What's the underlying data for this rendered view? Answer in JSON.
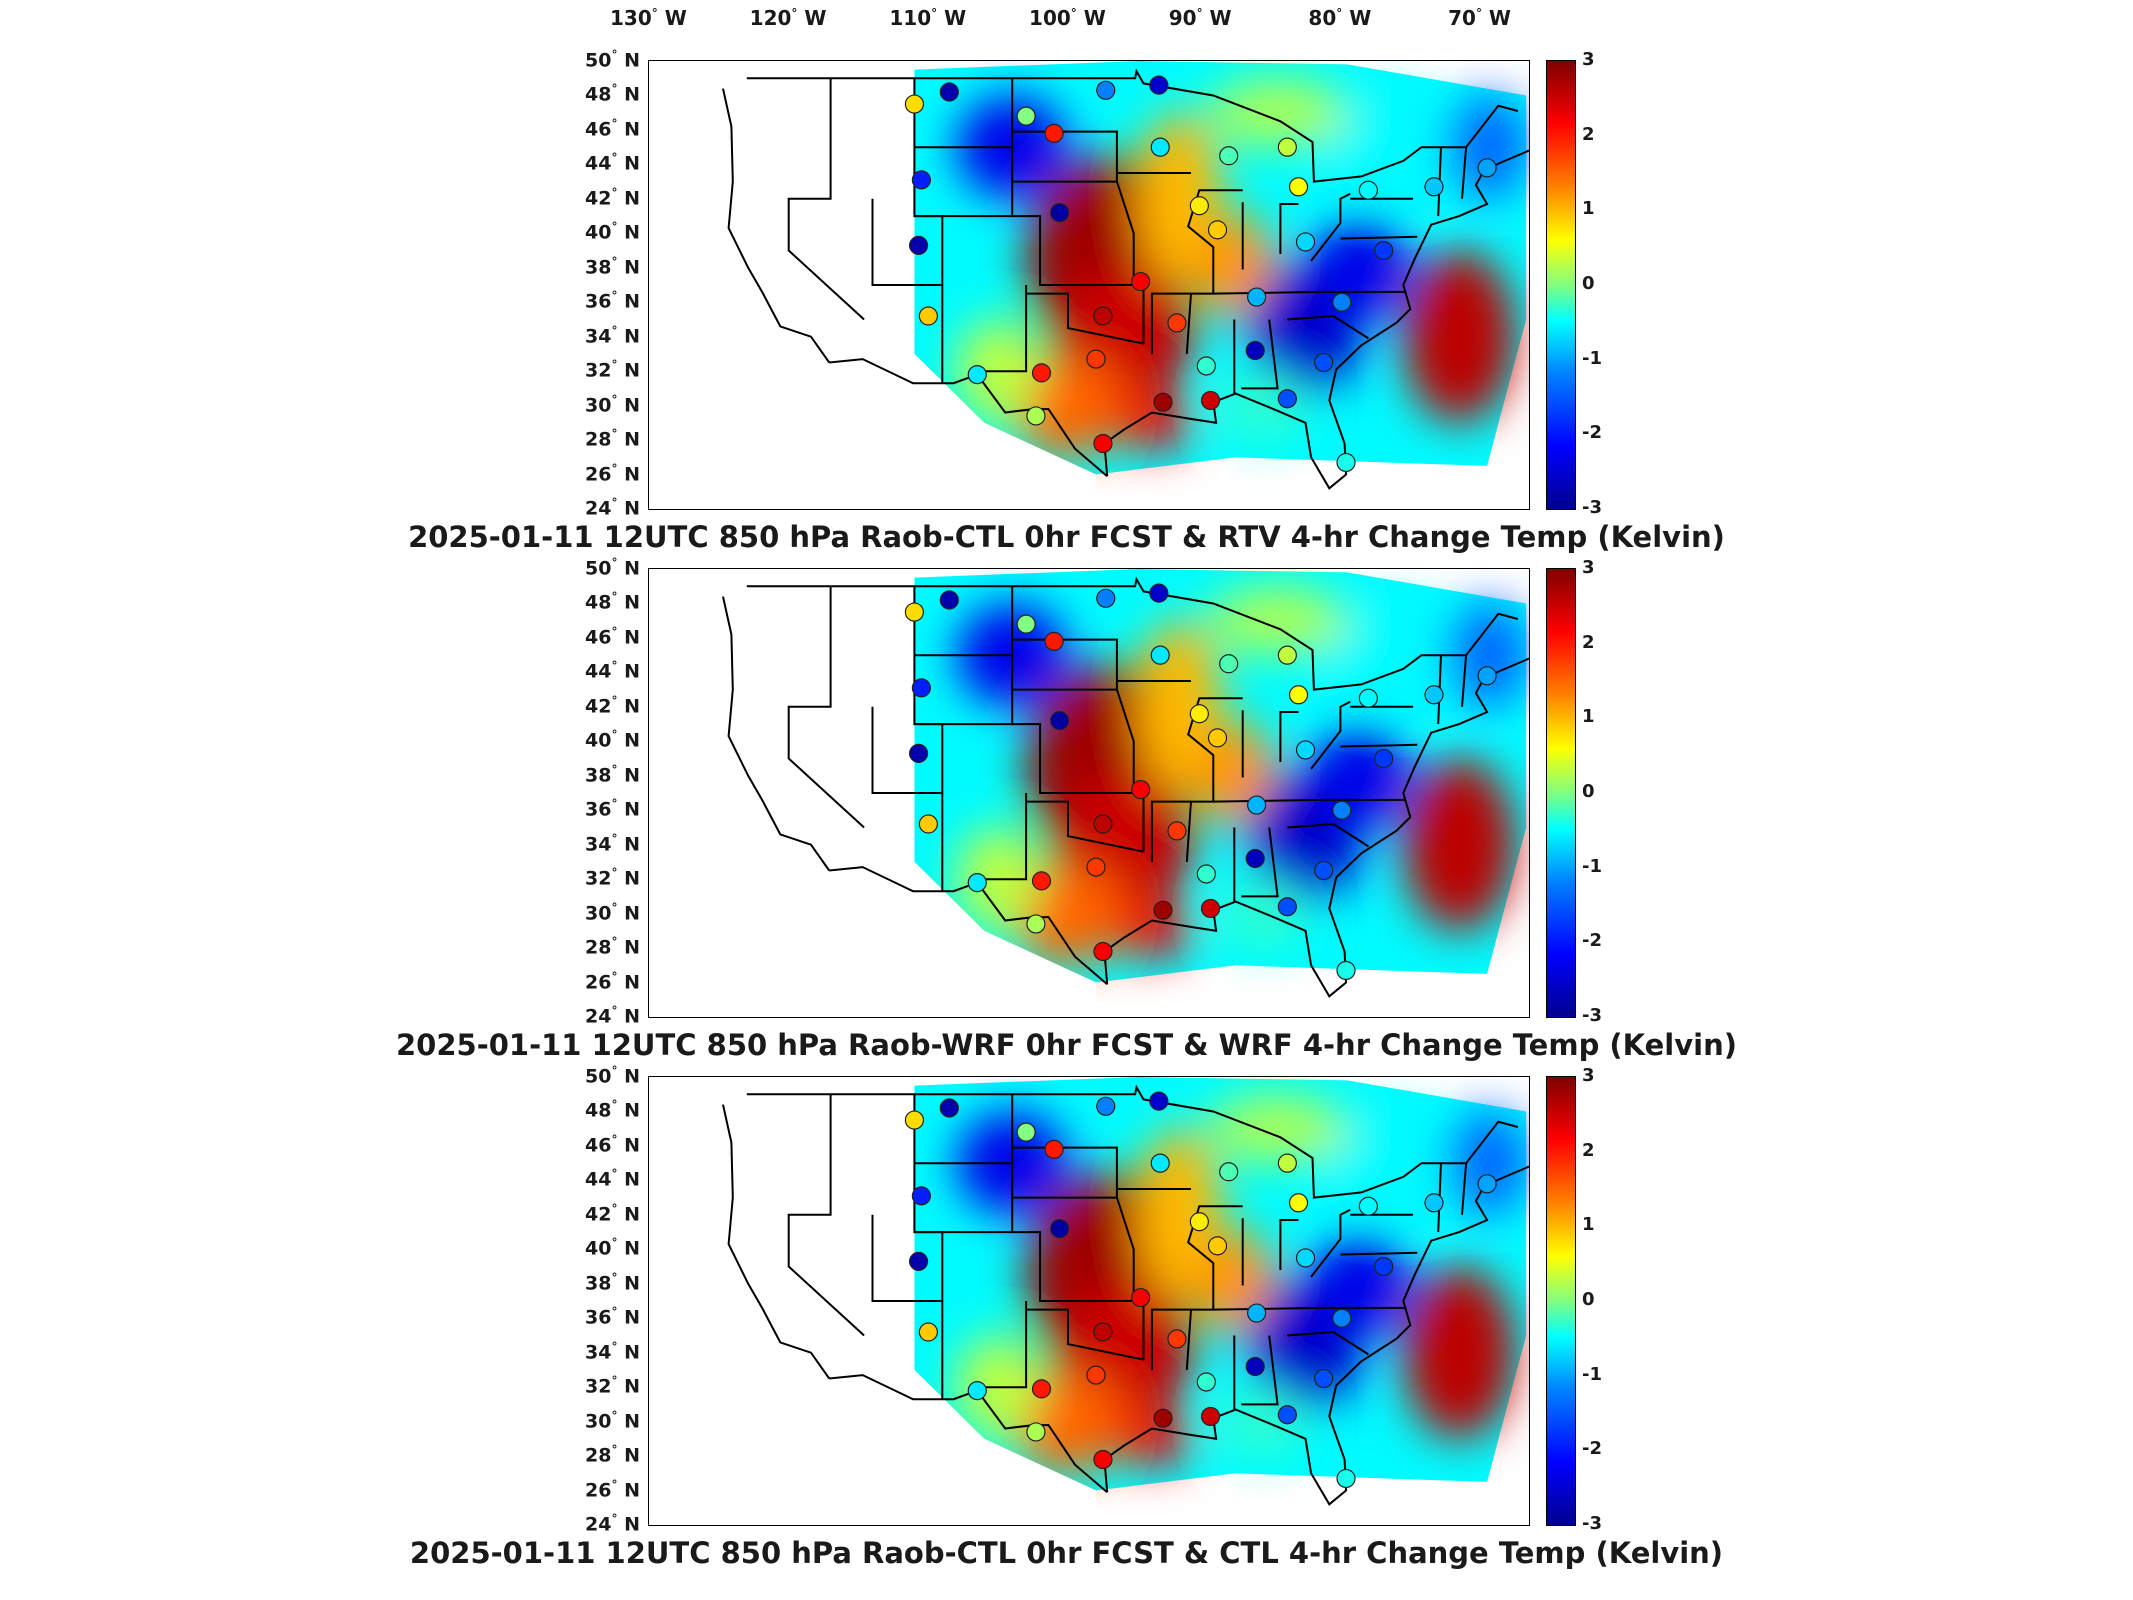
{
  "longitude_labels": [
    {
      "deg": "130",
      "dir": "W"
    },
    {
      "deg": "120",
      "dir": "W"
    },
    {
      "deg": "110",
      "dir": "W"
    },
    {
      "deg": "100",
      "dir": "W"
    },
    {
      "deg": "90",
      "dir": "W"
    },
    {
      "deg": "80",
      "dir": "W"
    },
    {
      "deg": "70",
      "dir": "W"
    }
  ],
  "latitude_labels": [
    {
      "deg": "50",
      "dir": "N"
    },
    {
      "deg": "48",
      "dir": "N"
    },
    {
      "deg": "46",
      "dir": "N"
    },
    {
      "deg": "44",
      "dir": "N"
    },
    {
      "deg": "42",
      "dir": "N"
    },
    {
      "deg": "40",
      "dir": "N"
    },
    {
      "deg": "38",
      "dir": "N"
    },
    {
      "deg": "36",
      "dir": "N"
    },
    {
      "deg": "34",
      "dir": "N"
    },
    {
      "deg": "32",
      "dir": "N"
    },
    {
      "deg": "30",
      "dir": "N"
    },
    {
      "deg": "28",
      "dir": "N"
    },
    {
      "deg": "26",
      "dir": "N"
    },
    {
      "deg": "24",
      "dir": "N"
    }
  ],
  "colorbar": {
    "ticks": [
      "3",
      "2",
      "1",
      "0",
      "-1",
      "-2",
      "-3"
    ],
    "range": [
      -3,
      3
    ],
    "colormap": "jet",
    "colors": [
      "#00008f",
      "#0000ff",
      "#0080ff",
      "#00ffff",
      "#80ff80",
      "#ffff00",
      "#ff8000",
      "#ff0000",
      "#800000"
    ]
  },
  "panels": [
    {
      "id": "rtv",
      "title": "2025-01-11 12UTC 850 hPa Raob-CTL 0hr FCST & RTV 4-hr Change Temp (Kelvin)"
    },
    {
      "id": "wrf",
      "title": "2025-01-11 12UTC 850 hPa Raob-WRF 0hr FCST & WRF 4-hr Change Temp (Kelvin)"
    },
    {
      "id": "ctl",
      "title": "2025-01-11 12UTC 850 hPa Raob-CTL 0hr FCST & CTL 4-hr Change Temp (Kelvin)"
    }
  ],
  "map_extent": {
    "lon": [
      -130,
      -67
    ],
    "lat": [
      24,
      50
    ]
  },
  "raob_stations": [
    {
      "lon": -111.0,
      "lat": 47.5,
      "v": 0.8
    },
    {
      "lon": -108.5,
      "lat": 48.2,
      "v": -2.8
    },
    {
      "lon": -103.0,
      "lat": 46.8,
      "v": 0.0
    },
    {
      "lon": -97.3,
      "lat": 48.3,
      "v": -1.2
    },
    {
      "lon": -93.5,
      "lat": 48.6,
      "v": -2.6
    },
    {
      "lon": -110.5,
      "lat": 43.1,
      "v": -2.0
    },
    {
      "lon": -101.0,
      "lat": 45.8,
      "v": 2.0
    },
    {
      "lon": -93.4,
      "lat": 45.0,
      "v": -0.6
    },
    {
      "lon": -88.5,
      "lat": 44.5,
      "v": -0.2
    },
    {
      "lon": -84.3,
      "lat": 45.0,
      "v": 0.3
    },
    {
      "lon": -83.5,
      "lat": 42.7,
      "v": 0.6
    },
    {
      "lon": -78.5,
      "lat": 42.5,
      "v": -0.5
    },
    {
      "lon": -73.8,
      "lat": 42.7,
      "v": -0.8
    },
    {
      "lon": -70.0,
      "lat": 43.8,
      "v": -1.0
    },
    {
      "lon": -100.6,
      "lat": 41.2,
      "v": -2.9
    },
    {
      "lon": -90.6,
      "lat": 41.6,
      "v": 0.7
    },
    {
      "lon": -89.3,
      "lat": 40.2,
      "v": 0.9
    },
    {
      "lon": -83.0,
      "lat": 39.5,
      "v": -0.7
    },
    {
      "lon": -77.4,
      "lat": 39.0,
      "v": -1.8
    },
    {
      "lon": -110.7,
      "lat": 39.3,
      "v": -2.8
    },
    {
      "lon": -94.8,
      "lat": 37.2,
      "v": 2.2
    },
    {
      "lon": -86.5,
      "lat": 36.3,
      "v": -0.9
    },
    {
      "lon": -80.4,
      "lat": 36.0,
      "v": -1.2
    },
    {
      "lon": -110.0,
      "lat": 35.2,
      "v": 0.9
    },
    {
      "lon": -97.5,
      "lat": 35.2,
      "v": 2.6
    },
    {
      "lon": -92.2,
      "lat": 34.8,
      "v": 1.8
    },
    {
      "lon": -86.6,
      "lat": 33.2,
      "v": -2.7
    },
    {
      "lon": -90.1,
      "lat": 32.3,
      "v": -0.3
    },
    {
      "lon": -98.0,
      "lat": 32.7,
      "v": 1.8
    },
    {
      "lon": -101.9,
      "lat": 31.9,
      "v": 2.0
    },
    {
      "lon": -106.5,
      "lat": 31.8,
      "v": -0.6
    },
    {
      "lon": -93.2,
      "lat": 30.2,
      "v": 2.8
    },
    {
      "lon": -89.8,
      "lat": 30.3,
      "v": 2.5
    },
    {
      "lon": -84.3,
      "lat": 30.4,
      "v": -1.6
    },
    {
      "lon": -81.7,
      "lat": 32.5,
      "v": -1.6
    },
    {
      "lon": -102.3,
      "lat": 29.4,
      "v": 0.2
    },
    {
      "lon": -97.5,
      "lat": 27.8,
      "v": 2.2
    },
    {
      "lon": -80.1,
      "lat": 26.7,
      "v": -0.4
    }
  ]
}
